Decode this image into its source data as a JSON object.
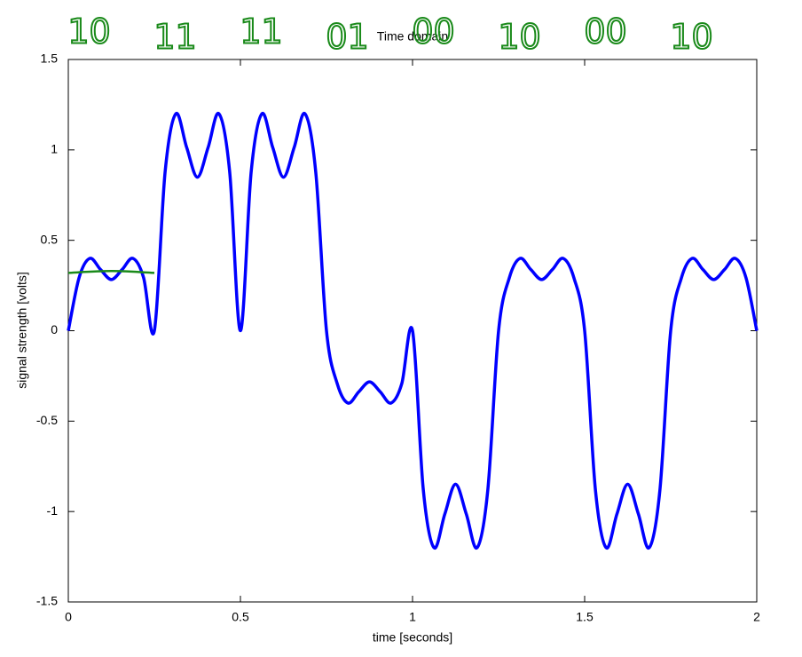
{
  "chart_data": {
    "type": "line",
    "title": "Time domain",
    "x_label": "time [seconds]",
    "y_label": "signal strength [volts]",
    "xlim": [
      0,
      2
    ],
    "ylim": [
      -1.5,
      1.5
    ],
    "xticks": [
      0,
      0.5,
      1,
      1.5,
      2
    ],
    "yticks": [
      -1.5,
      -1,
      -0.5,
      0,
      0.5,
      1,
      1.5
    ],
    "x": [
      0,
      0.03125,
      0.0625,
      0.09375,
      0.125,
      0.15625,
      0.1875,
      0.21875,
      0.25,
      0.28125,
      0.3125,
      0.34375,
      0.375,
      0.40625,
      0.4375,
      0.46875,
      0.5,
      0.53125,
      0.5625,
      0.59375,
      0.625,
      0.65625,
      0.6875,
      0.71875,
      0.75,
      0.78125,
      0.8125,
      0.84375,
      0.875,
      0.90625,
      0.9375,
      0.96875,
      1,
      1.03125,
      1.0625,
      1.09375,
      1.125,
      1.15625,
      1.1875,
      1.21875,
      1.25,
      1.28125,
      1.3125,
      1.34375,
      1.375,
      1.40625,
      1.4375,
      1.46875,
      1.5,
      1.53125,
      1.5625,
      1.59375,
      1.625,
      1.65625,
      1.6875,
      1.71875,
      1.75,
      1.78125,
      1.8125,
      1.84375,
      1.875,
      1.90625,
      1.9375,
      1.96875,
      2
    ],
    "series": [
      {
        "color": "#0000ff",
        "values": [
          0,
          0.293,
          0.4,
          0.338,
          0.283,
          0.338,
          0.4,
          0.293,
          0,
          0.879,
          1.2,
          1.014,
          0.849,
          1.014,
          1.2,
          0.879,
          0,
          0.879,
          1.2,
          1.014,
          0.849,
          1.014,
          1.2,
          0.879,
          0,
          -0.293,
          -0.4,
          -0.338,
          -0.283,
          -0.338,
          -0.4,
          -0.293,
          0,
          -0.879,
          -1.2,
          -1.014,
          -0.849,
          -1.014,
          -1.2,
          -0.879,
          0,
          0.293,
          0.4,
          0.338,
          0.283,
          0.338,
          0.4,
          0.293,
          0,
          -0.879,
          -1.2,
          -1.014,
          -0.849,
          -1.014,
          -1.2,
          -0.879,
          0,
          0.293,
          0.4,
          0.338,
          0.283,
          0.338,
          0.4,
          0.293,
          0
        ]
      },
      {
        "color": "#1a8a1a",
        "x": [
          0,
          0.125,
          0.25
        ],
        "values": [
          0.32,
          0.33,
          0.32
        ]
      }
    ],
    "annotations": [
      "10",
      "11",
      "11",
      "01",
      "00",
      "10",
      "00",
      "10"
    ]
  }
}
